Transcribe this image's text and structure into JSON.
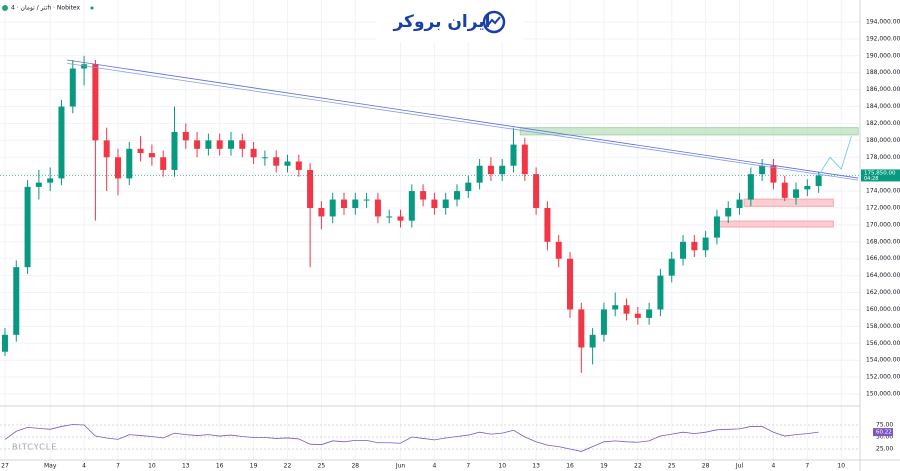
{
  "header": {
    "symbol": "تتر / تومان · 4h · Nobitex",
    "logo": "ایران بروکر",
    "watermark": "BITCYCLE"
  },
  "chart_data": {
    "type": "candlestick",
    "x": [
      0,
      1,
      2,
      3,
      4,
      5,
      6,
      7,
      8,
      9,
      10,
      11,
      12,
      13,
      14,
      15,
      16,
      17,
      18,
      19,
      20,
      21,
      22,
      23,
      24,
      25,
      26,
      27,
      28,
      29,
      30,
      31,
      32,
      33,
      34,
      35,
      36,
      37,
      38,
      39,
      40,
      41,
      42,
      43,
      44,
      45,
      46,
      47,
      48,
      49,
      50,
      51,
      52,
      53,
      54,
      55,
      56,
      57,
      58,
      59,
      60,
      61,
      62,
      63,
      64,
      65,
      66,
      67,
      68,
      69,
      70,
      71,
      72
    ],
    "open": [
      155000,
      157000,
      165000,
      174500,
      175000,
      175500,
      184000,
      188500,
      189000,
      180000,
      178000,
      175500,
      179000,
      178500,
      178000,
      176500,
      181000,
      180000,
      179000,
      180000,
      179000,
      180000,
      179000,
      178000,
      178000,
      177000,
      177500,
      176500,
      172000,
      171000,
      173000,
      172000,
      173000,
      173000,
      171000,
      171000,
      170500,
      174000,
      173000,
      172000,
      173000,
      174000,
      175000,
      177000,
      176000,
      177000,
      179500,
      176000,
      172000,
      168000,
      166000,
      160000,
      155500,
      157000,
      160000,
      160500,
      159500,
      159000,
      160000,
      164000,
      166000,
      168000,
      167000,
      168500,
      171000,
      172000,
      173000,
      176000,
      177000,
      175000,
      173200,
      174200,
      174600
    ],
    "high": [
      157800,
      165800,
      175300,
      176500,
      176800,
      184800,
      189500,
      190000,
      189500,
      181500,
      179000,
      179800,
      180500,
      179500,
      178800,
      184000,
      182000,
      181000,
      180800,
      180800,
      181000,
      180800,
      179800,
      178800,
      178800,
      178300,
      178300,
      177300,
      172800,
      173800,
      173800,
      173800,
      173800,
      173800,
      171800,
      171800,
      174800,
      174800,
      173800,
      173800,
      174800,
      175800,
      177800,
      178000,
      177800,
      181500,
      180300,
      176800,
      172800,
      168800,
      166800,
      160800,
      157800,
      160800,
      162000,
      161300,
      160300,
      160800,
      164800,
      166800,
      168800,
      168800,
      169300,
      171800,
      172800,
      173800,
      176800,
      177800,
      177800,
      175800,
      175000,
      175400,
      176300
    ],
    "low": [
      154500,
      156200,
      164200,
      173000,
      174000,
      174700,
      183200,
      186500,
      170500,
      174000,
      173500,
      174700,
      177500,
      177000,
      175700,
      175700,
      179000,
      178000,
      178200,
      178200,
      178200,
      178000,
      177200,
      177000,
      176200,
      176200,
      175700,
      165000,
      169500,
      170200,
      171200,
      171200,
      172000,
      170200,
      170200,
      169700,
      169700,
      172200,
      171200,
      171200,
      172200,
      173200,
      174200,
      175200,
      175200,
      176200,
      175200,
      171200,
      167000,
      165000,
      159000,
      152500,
      153500,
      156200,
      159200,
      158700,
      158200,
      158200,
      159200,
      163200,
      165200,
      166200,
      166200,
      167700,
      170200,
      171200,
      172200,
      175200,
      174200,
      172800,
      172400,
      173400,
      173800
    ],
    "close": [
      157000,
      165000,
      174500,
      175000,
      175500,
      184000,
      188500,
      189000,
      180000,
      178000,
      175500,
      179000,
      178500,
      178000,
      176500,
      181000,
      180000,
      179000,
      180000,
      179000,
      180000,
      179000,
      178000,
      178000,
      177000,
      177500,
      176500,
      172000,
      171000,
      173000,
      172000,
      173000,
      173000,
      171000,
      171000,
      170500,
      174000,
      173000,
      172000,
      173000,
      174000,
      175000,
      177000,
      176000,
      177000,
      179500,
      176000,
      172000,
      168000,
      166000,
      160000,
      155500,
      157000,
      160000,
      160500,
      159500,
      159000,
      160000,
      164000,
      166000,
      168000,
      167000,
      168500,
      171000,
      172000,
      173000,
      176000,
      177000,
      175000,
      173200,
      174200,
      174600,
      175850
    ],
    "up_color": "#089981",
    "down_color": "#f23645",
    "xlim": [
      -0.44,
      75.66
    ],
    "ylim": [
      148700,
      196600
    ],
    "xticks": [
      {
        "value": 0,
        "label": "27"
      },
      {
        "value": 4,
        "label": "May"
      },
      {
        "value": 7,
        "label": "4"
      },
      {
        "value": 10,
        "label": "7"
      },
      {
        "value": 13,
        "label": "10"
      },
      {
        "value": 16,
        "label": "13"
      },
      {
        "value": 19,
        "label": "16"
      },
      {
        "value": 22,
        "label": "19"
      },
      {
        "value": 25,
        "label": "22"
      },
      {
        "value": 28,
        "label": "25"
      },
      {
        "value": 31,
        "label": "28"
      },
      {
        "value": 35,
        "label": "Jun"
      },
      {
        "value": 38,
        "label": "4"
      },
      {
        "value": 41,
        "label": "7"
      },
      {
        "value": 44,
        "label": "10"
      },
      {
        "value": 47,
        "label": "13"
      },
      {
        "value": 50,
        "label": "16"
      },
      {
        "value": 53,
        "label": "19"
      },
      {
        "value": 56,
        "label": "22"
      },
      {
        "value": 59,
        "label": "25"
      },
      {
        "value": 62,
        "label": "28"
      },
      {
        "value": 65,
        "label": "Jul"
      },
      {
        "value": 68,
        "label": "4"
      },
      {
        "value": 71,
        "label": "7"
      },
      {
        "value": 74,
        "label": "10"
      }
    ],
    "yticks": [
      {
        "value": 150000,
        "label": "150,000.00"
      },
      {
        "value": 152000,
        "label": "152,000.00"
      },
      {
        "value": 154000,
        "label": "154,000.00"
      },
      {
        "value": 156000,
        "label": "156,000.00"
      },
      {
        "value": 158000,
        "label": "158,000.00"
      },
      {
        "value": 160000,
        "label": "160,000.00"
      },
      {
        "value": 162000,
        "label": "162,000.00"
      },
      {
        "value": 164000,
        "label": "164,000.00"
      },
      {
        "value": 166000,
        "label": "166,000.00"
      },
      {
        "value": 168000,
        "label": "168,000.00"
      },
      {
        "value": 170000,
        "label": "170,000.00"
      },
      {
        "value": 172000,
        "label": "172,000.00"
      },
      {
        "value": 174000,
        "label": "174,000.00"
      },
      {
        "value": 176000,
        "label": "176,000.00"
      },
      {
        "value": 178000,
        "label": "178,000.00"
      },
      {
        "value": 180000,
        "label": "180,000.00"
      },
      {
        "value": 182000,
        "label": "182,000.00"
      },
      {
        "value": 184000,
        "label": "184,000.00"
      },
      {
        "value": 186000,
        "label": "186,000.00"
      },
      {
        "value": 188000,
        "label": "188,000.00"
      },
      {
        "value": 190000,
        "label": "190,000.00"
      },
      {
        "value": 192000,
        "label": "192,000.00"
      },
      {
        "value": 194000,
        "label": "194,000.00"
      }
    ],
    "grid": true,
    "last_price": {
      "value": 175850,
      "label": "175,850.00"
    },
    "countdown": "04:28",
    "trendlines": [
      {
        "x": [
          5.5,
          75.5
        ],
        "y": [
          189500,
          175540
        ],
        "color": "#5b6cd8"
      },
      {
        "x": [
          5.5,
          75.5
        ],
        "y": [
          189100,
          175300
        ],
        "color": "#8a9be6"
      }
    ],
    "zones": [
      {
        "x": [
          45.6,
          75.5
        ],
        "y": [
          180650,
          181500
        ],
        "color": "#a5d6a7"
      },
      {
        "x": [
          65.4,
          73.3
        ],
        "y": [
          172200,
          173050
        ],
        "color": "#f8a5ad"
      },
      {
        "x": [
          63.2,
          73.3
        ],
        "y": [
          169750,
          170450
        ],
        "color": "#f8a5ad"
      }
    ],
    "projection": {
      "x": [
        72,
        73,
        74,
        74.9
      ],
      "y": [
        175850,
        178000,
        176600,
        180500
      ],
      "color": "#7ec8e3"
    },
    "rsi": {
      "values": [
        45,
        62,
        70,
        68,
        66,
        72,
        76,
        75,
        52,
        48,
        45,
        55,
        53,
        51,
        48,
        58,
        55,
        53,
        55,
        52,
        54,
        51,
        49,
        49,
        47,
        48,
        46,
        35,
        34,
        42,
        40,
        43,
        43,
        38,
        38,
        37,
        50,
        47,
        44,
        48,
        51,
        54,
        60,
        56,
        58,
        64,
        50,
        40,
        33,
        30,
        25,
        20,
        30,
        40,
        42,
        40,
        39,
        42,
        52,
        56,
        60,
        57,
        60,
        65,
        66,
        67,
        72,
        72,
        60,
        52,
        55,
        57,
        60.22
      ],
      "color": "#7e57c2",
      "ylim": [
        0,
        100
      ],
      "yticks": [
        {
          "value": 25,
          "label": "25.00"
        },
        {
          "value": 50,
          "label": "50.00"
        },
        {
          "value": 75,
          "label": "75.00"
        }
      ]
    }
  }
}
